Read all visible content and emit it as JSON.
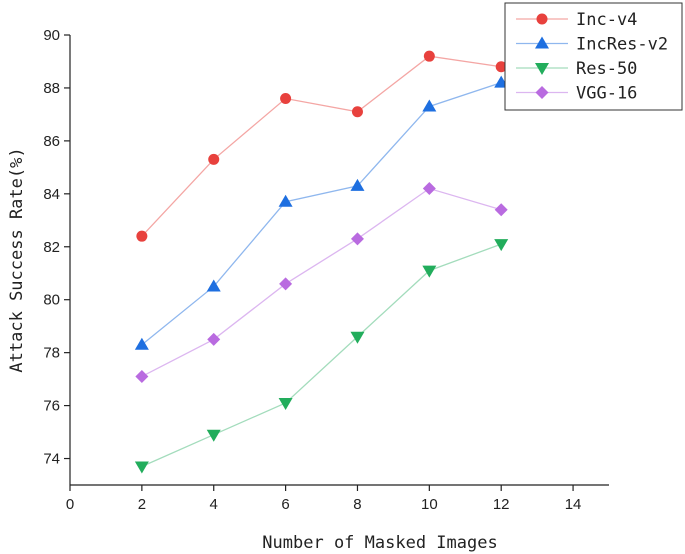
{
  "chart_data": {
    "type": "line",
    "title": "",
    "xlabel": "Number of Masked Images",
    "ylabel": "Attack Success Rate(%)",
    "xlim": [
      0,
      15
    ],
    "ylim": [
      73,
      90
    ],
    "xticks": [
      0,
      2,
      4,
      6,
      8,
      10,
      12,
      14
    ],
    "yticks": [
      74,
      76,
      78,
      80,
      82,
      84,
      86,
      88,
      90
    ],
    "grid": false,
    "legend_position": "top-right",
    "x": [
      2,
      4,
      6,
      8,
      10,
      12
    ],
    "series": [
      {
        "name": "Inc-v4",
        "values": [
          82.4,
          85.3,
          87.6,
          87.1,
          89.2,
          88.8
        ],
        "color": "#e8413d",
        "line_color": "#f4a6a4",
        "marker": "circle"
      },
      {
        "name": "IncRes-v2",
        "values": [
          78.3,
          80.5,
          83.7,
          84.3,
          87.3,
          88.2
        ],
        "color": "#1e6fe0",
        "line_color": "#8fb7ee",
        "marker": "triangle-up"
      },
      {
        "name": "Res-50",
        "values": [
          73.7,
          74.9,
          76.1,
          78.6,
          81.1,
          82.1
        ],
        "color": "#22ad5c",
        "line_color": "#a3dcbc",
        "marker": "triangle-down"
      },
      {
        "name": "VGG-16",
        "values": [
          77.1,
          78.5,
          80.6,
          82.3,
          84.2,
          83.4
        ],
        "color": "#b96be0",
        "line_color": "#dcb6f0",
        "marker": "diamond"
      }
    ]
  }
}
